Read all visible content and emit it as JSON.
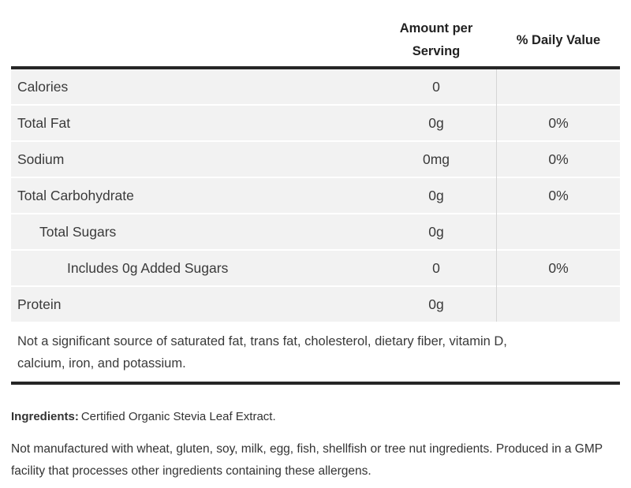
{
  "header": {
    "amount_label": "Amount per Serving",
    "daily_value_label": "% Daily Value"
  },
  "table": {
    "rows": [
      {
        "label": "Calories",
        "amount": "0",
        "daily_value": "",
        "indent": 0
      },
      {
        "label": "Total Fat",
        "amount": "0g",
        "daily_value": "0%",
        "indent": 0
      },
      {
        "label": "Sodium",
        "amount": "0mg",
        "daily_value": "0%",
        "indent": 0
      },
      {
        "label": "Total Carbohydrate",
        "amount": "0g",
        "daily_value": "0%",
        "indent": 0
      },
      {
        "label": "Total Sugars",
        "amount": "0g",
        "daily_value": "",
        "indent": 1
      },
      {
        "label": "Includes 0g Added Sugars",
        "amount": "0",
        "daily_value": "0%",
        "indent": 2
      },
      {
        "label": "Protein",
        "amount": "0g",
        "daily_value": "",
        "indent": 0
      }
    ],
    "footnote": "Not a significant source of saturated fat, trans fat, cholesterol, dietary fiber, vitamin D, calcium, iron, and potassium."
  },
  "ingredients": {
    "label": "Ingredients:",
    "value": "Certified Organic Stevia Leaf Extract."
  },
  "allergen_note": "Not manufactured with wheat, gluten, soy, milk, egg, fish, shellfish or tree nut ingredients. Produced in a GMP facility that processes other ingredients containing these allergens.",
  "colors": {
    "row_bg": "#f2f2f2",
    "thick_border": "#262626",
    "column_divider": "#d5d5d5",
    "text": "#3a3a3a"
  }
}
